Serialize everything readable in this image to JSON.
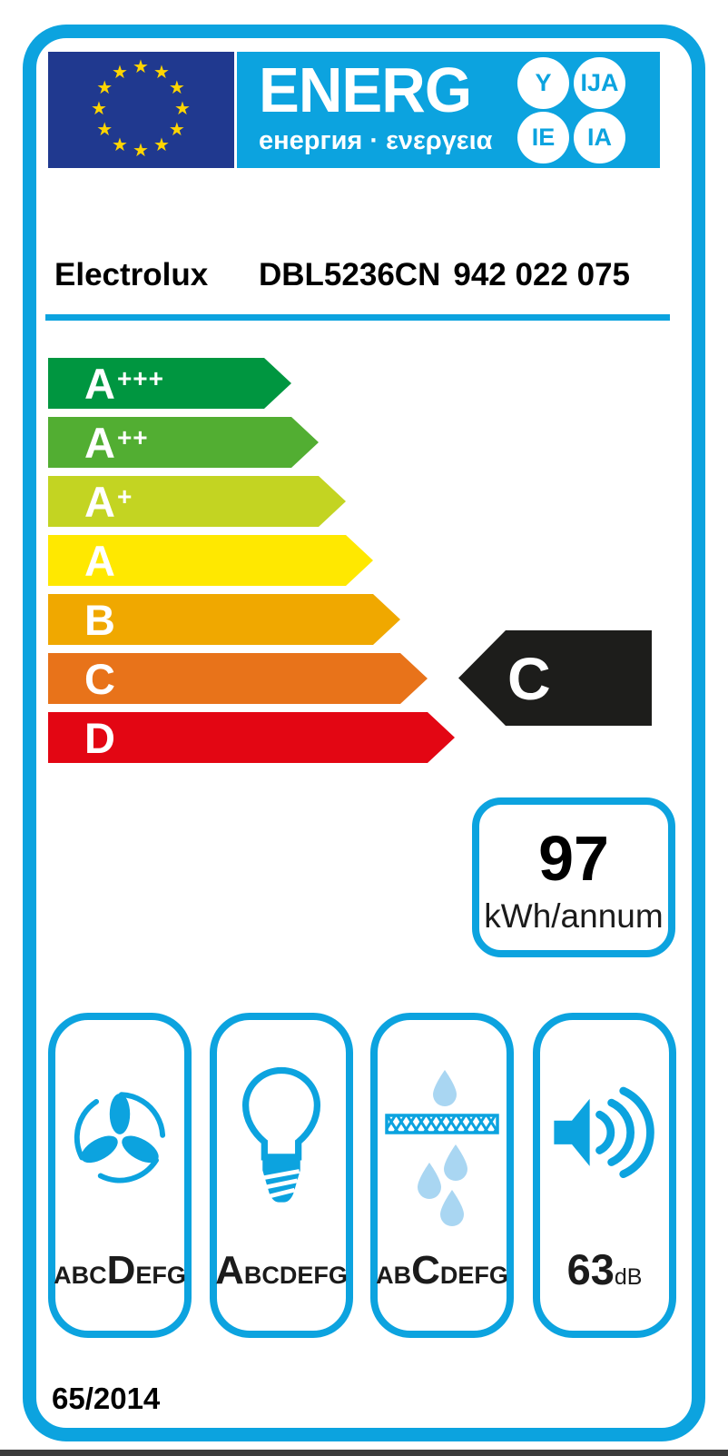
{
  "colors": {
    "accent_cyan": "#0ca3df",
    "eu_flag_blue": "#20398f",
    "star_yellow": "#ffd500",
    "black_arrow": "#1d1d1b",
    "droplet_light_blue": "#a9d6f2"
  },
  "header": {
    "logo_text": "ENERG",
    "logo_subtitle": "енергия · ενεργεια",
    "suffixes": {
      "top_left": "Y",
      "top_right": "IJA",
      "bottom_left": "IE",
      "bottom_right": "IA"
    }
  },
  "product": {
    "brand": "Electrolux",
    "model": "DBL5236CN",
    "product_number": "942 022 075"
  },
  "rating": {
    "scale": [
      {
        "label": "A+++",
        "grade": "A",
        "plus": "+++",
        "color": "#009640"
      },
      {
        "label": "A++",
        "grade": "A",
        "plus": "++",
        "color": "#52ae32"
      },
      {
        "label": "A+",
        "grade": "A",
        "plus": "+",
        "color": "#c3d422"
      },
      {
        "label": "A",
        "grade": "A",
        "plus": "",
        "color": "#ffe800"
      },
      {
        "label": "B",
        "grade": "B",
        "plus": "",
        "color": "#f0a800"
      },
      {
        "label": "C",
        "grade": "C",
        "plus": "",
        "color": "#e8731a"
      },
      {
        "label": "D",
        "grade": "D",
        "plus": "",
        "color": "#e30613"
      }
    ],
    "selected_grade": "C"
  },
  "energy_consumption": {
    "value": "97",
    "unit": "kWh/annum"
  },
  "metrics": {
    "fluid_dynamic": {
      "icon": "fan-icon",
      "pre": "ABC",
      "grade": "D",
      "post": "EFG"
    },
    "lighting": {
      "icon": "lightbulb-icon",
      "pre": "",
      "grade": "A",
      "post": "BCDEFG"
    },
    "grease_filtering": {
      "icon": "grease-filter-icon",
      "pre": "AB",
      "grade": "C",
      "post": "DEFG"
    },
    "noise": {
      "icon": "speaker-icon",
      "value": "63",
      "unit": "dB"
    }
  },
  "regulation": "65/2014"
}
